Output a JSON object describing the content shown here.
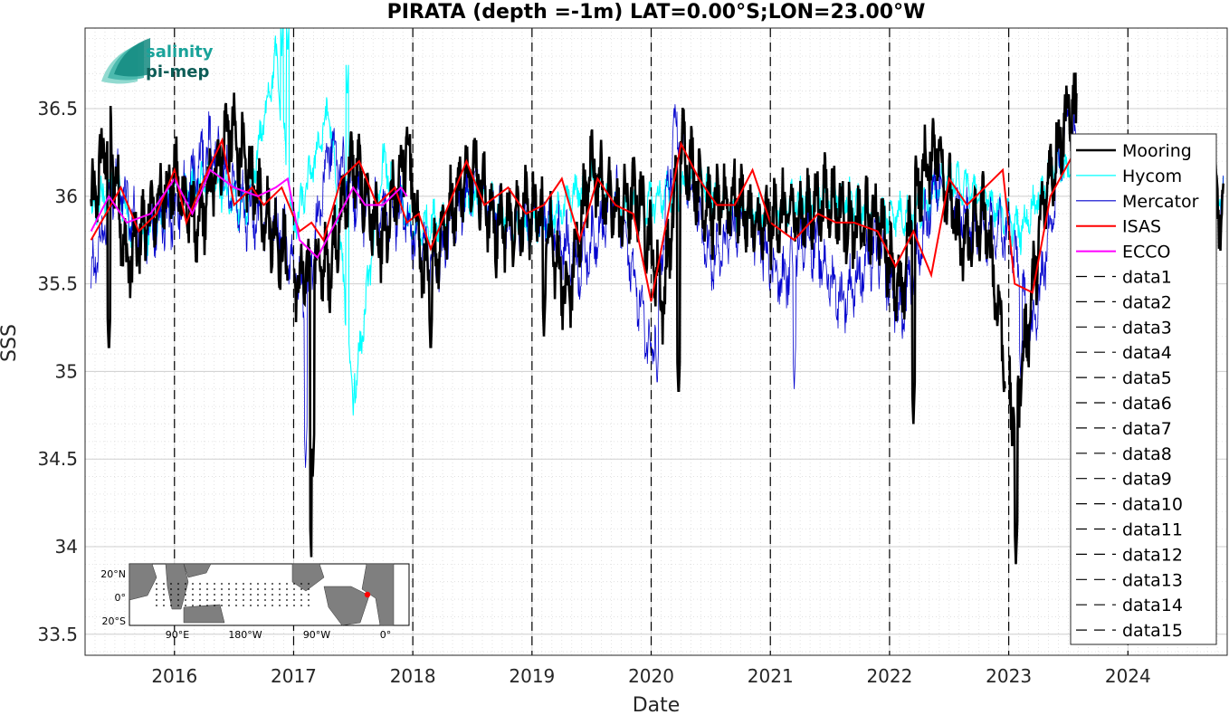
{
  "chart_data": {
    "type": "line",
    "title": "PIRATA (depth =-1m) LAT=0.00°S;LON=23.00°W",
    "xlabel": "Date",
    "ylabel": "SSS",
    "x_tick_labels": [
      "2016",
      "2017",
      "2018",
      "2019",
      "2020",
      "2021",
      "2022",
      "2023",
      "2024"
    ],
    "y_tick_labels": [
      "33.5",
      "34",
      "34.5",
      "35",
      "35.5",
      "36",
      "36.5"
    ],
    "xlim": [
      "2015-04-01",
      "2024-11-01"
    ],
    "ylim": [
      33.38,
      36.96
    ],
    "grid": true,
    "legend_position": "right",
    "vertical_dashed_lines_at": [
      "2016",
      "2017",
      "2018",
      "2019",
      "2020",
      "2021",
      "2022",
      "2023",
      "2024"
    ],
    "series": [
      {
        "name": "Mooring",
        "color": "#000000",
        "x_start": 2015.3,
        "x_end": 2024.8,
        "gaps": [
          [
            2016.95,
            2017.0
          ],
          [
            2022.97,
            2023.0
          ],
          [
            2023.57,
            2024.5
          ]
        ],
        "x": [
          2015.3,
          2015.45,
          2015.6,
          2015.8,
          2016.0,
          2016.2,
          2016.45,
          2016.7,
          2016.9,
          2017.05,
          2017.15,
          2017.3,
          2017.5,
          2017.75,
          2017.95,
          2018.1,
          2018.3,
          2018.5,
          2018.7,
          2018.9,
          2019.1,
          2019.3,
          2019.5,
          2019.7,
          2019.9,
          2020.1,
          2020.25,
          2020.5,
          2020.7,
          2020.9,
          2021.1,
          2021.3,
          2021.5,
          2021.7,
          2021.9,
          2022.1,
          2022.2,
          2022.4,
          2022.6,
          2022.8,
          2023.05,
          2023.15,
          2023.3,
          2023.5,
          2024.5,
          2024.8
        ],
        "y": [
          35.9,
          36.4,
          35.6,
          35.9,
          36.1,
          35.8,
          36.4,
          36.0,
          35.7,
          35.5,
          35.6,
          35.6,
          36.2,
          35.7,
          36.3,
          35.5,
          35.9,
          36.2,
          35.8,
          35.9,
          35.9,
          35.4,
          36.2,
          35.9,
          36.0,
          35.4,
          36.3,
          35.9,
          36.0,
          35.8,
          35.9,
          35.9,
          36.0,
          35.8,
          35.9,
          35.4,
          36.0,
          36.3,
          35.7,
          35.9,
          34.7,
          35.2,
          36.0,
          36.5,
          36.0,
          35.9
        ]
      },
      {
        "name": "Hycom",
        "color": "#00ffff",
        "x_start": 2015.3,
        "x_end": 2024.8,
        "gaps": [],
        "x": [
          2015.3,
          2015.5,
          2015.7,
          2016.0,
          2016.3,
          2016.6,
          2016.85,
          2017.0,
          2017.3,
          2017.5,
          2017.75,
          2018.0,
          2018.3,
          2018.6,
          2018.9,
          2019.2,
          2019.5,
          2019.8,
          2020.1,
          2020.4,
          2020.7,
          2021.0,
          2021.3,
          2021.6,
          2021.9,
          2022.2,
          2022.5,
          2022.8,
          2023.1,
          2023.4,
          2023.7,
          2024.0,
          2024.3,
          2024.6,
          2024.8
        ],
        "y": [
          35.9,
          36.1,
          35.7,
          36.0,
          36.1,
          35.9,
          36.8,
          35.8,
          36.5,
          34.8,
          36.2,
          35.8,
          35.9,
          36.0,
          35.8,
          35.9,
          36.1,
          35.9,
          36.0,
          36.1,
          35.9,
          35.9,
          36.0,
          36.0,
          35.9,
          35.9,
          36.1,
          36.0,
          35.8,
          36.2,
          36.0,
          36.1,
          36.0,
          36.0,
          36.0
        ]
      },
      {
        "name": "Mercator",
        "color": "#0000cd",
        "x_start": 2015.3,
        "x_end": 2024.8,
        "gaps": [],
        "x": [
          2015.3,
          2015.5,
          2015.7,
          2016.0,
          2016.3,
          2016.6,
          2016.9,
          2017.1,
          2017.3,
          2017.6,
          2017.9,
          2018.2,
          2018.5,
          2018.8,
          2019.1,
          2019.4,
          2019.7,
          2020.0,
          2020.2,
          2020.5,
          2020.8,
          2021.1,
          2021.3,
          2021.6,
          2021.9,
          2022.1,
          2022.4,
          2022.7,
          2023.0,
          2023.2,
          2023.5,
          2023.8,
          2024.1,
          2024.4,
          2024.8
        ],
        "y": [
          35.5,
          36.1,
          35.8,
          35.9,
          36.3,
          35.9,
          35.8,
          35.4,
          36.3,
          35.9,
          35.9,
          35.6,
          36.1,
          35.8,
          35.9,
          35.6,
          36.0,
          35.1,
          36.4,
          35.6,
          35.9,
          35.5,
          35.8,
          35.4,
          35.7,
          35.3,
          36.1,
          35.8,
          35.8,
          35.2,
          36.5,
          35.6,
          35.9,
          35.8,
          36.0
        ]
      },
      {
        "name": "ISAS",
        "color": "#ff0000",
        "x": [
          2015.3,
          2015.55,
          2015.7,
          2015.85,
          2016.0,
          2016.1,
          2016.25,
          2016.4,
          2016.5,
          2016.65,
          2016.75,
          2016.9,
          2017.05,
          2017.15,
          2017.25,
          2017.4,
          2017.55,
          2017.7,
          2017.85,
          2017.95,
          2018.05,
          2018.15,
          2018.3,
          2018.45,
          2018.6,
          2018.8,
          2018.95,
          2019.1,
          2019.25,
          2019.4,
          2019.55,
          2019.7,
          2019.85,
          2020.0,
          2020.1,
          2020.25,
          2020.4,
          2020.55,
          2020.7,
          2020.85,
          2021.0,
          2021.2,
          2021.4,
          2021.55,
          2021.7,
          2021.9,
          2022.05,
          2022.2,
          2022.35,
          2022.5,
          2022.65,
          2022.8,
          2022.95,
          2023.05,
          2023.2,
          2023.35,
          2023.55,
          2023.65
        ],
        "y": [
          35.75,
          36.05,
          35.8,
          35.9,
          36.15,
          35.85,
          36.1,
          36.32,
          35.95,
          36.05,
          35.95,
          36.05,
          35.8,
          35.85,
          35.75,
          36.1,
          36.2,
          35.95,
          36.05,
          35.85,
          35.9,
          35.7,
          35.95,
          36.2,
          35.95,
          36.05,
          35.9,
          35.95,
          36.1,
          35.75,
          36.1,
          35.95,
          35.9,
          35.4,
          35.75,
          36.3,
          36.1,
          35.95,
          35.95,
          36.15,
          35.85,
          35.75,
          35.9,
          35.85,
          35.85,
          35.8,
          35.6,
          35.8,
          35.55,
          36.1,
          35.95,
          36.05,
          36.15,
          35.5,
          35.45,
          36.0,
          36.25,
          36.0
        ]
      },
      {
        "name": "ECCO",
        "color": "#ff00ff",
        "x": [
          2015.3,
          2015.45,
          2015.6,
          2015.8,
          2016.0,
          2016.15,
          2016.3,
          2016.5,
          2016.7,
          2016.85,
          2016.95,
          2017.05,
          2017.2,
          2017.35,
          2017.5,
          2017.6,
          2017.75,
          2017.9,
          2017.95
        ],
        "y": [
          35.8,
          36.0,
          35.85,
          35.9,
          36.1,
          35.9,
          36.15,
          36.05,
          36.0,
          36.05,
          36.1,
          35.75,
          35.65,
          35.85,
          36.05,
          35.95,
          35.95,
          36.05,
          36.0
        ]
      },
      {
        "name": "data1",
        "color": "#000000"
      },
      {
        "name": "data2",
        "color": "#000000"
      },
      {
        "name": "data3",
        "color": "#000000"
      },
      {
        "name": "data4",
        "color": "#000000"
      },
      {
        "name": "data5",
        "color": "#000000"
      },
      {
        "name": "data6",
        "color": "#000000"
      },
      {
        "name": "data7",
        "color": "#000000"
      },
      {
        "name": "data8",
        "color": "#000000"
      },
      {
        "name": "data9",
        "color": "#000000"
      },
      {
        "name": "data10",
        "color": "#000000"
      },
      {
        "name": "data11",
        "color": "#000000"
      },
      {
        "name": "data12",
        "color": "#000000"
      },
      {
        "name": "data13",
        "color": "#000000"
      },
      {
        "name": "data14",
        "color": "#000000"
      },
      {
        "name": "data15",
        "color": "#000000"
      }
    ],
    "logo": {
      "line1": "salinity",
      "line2": "pi-mep",
      "color": "#1aa39a"
    },
    "inset_map": {
      "y_labels": [
        "20°N",
        "0°",
        "20°S"
      ],
      "x_labels": [
        "90°E",
        "180°W",
        "90°W",
        "0°"
      ]
    }
  }
}
